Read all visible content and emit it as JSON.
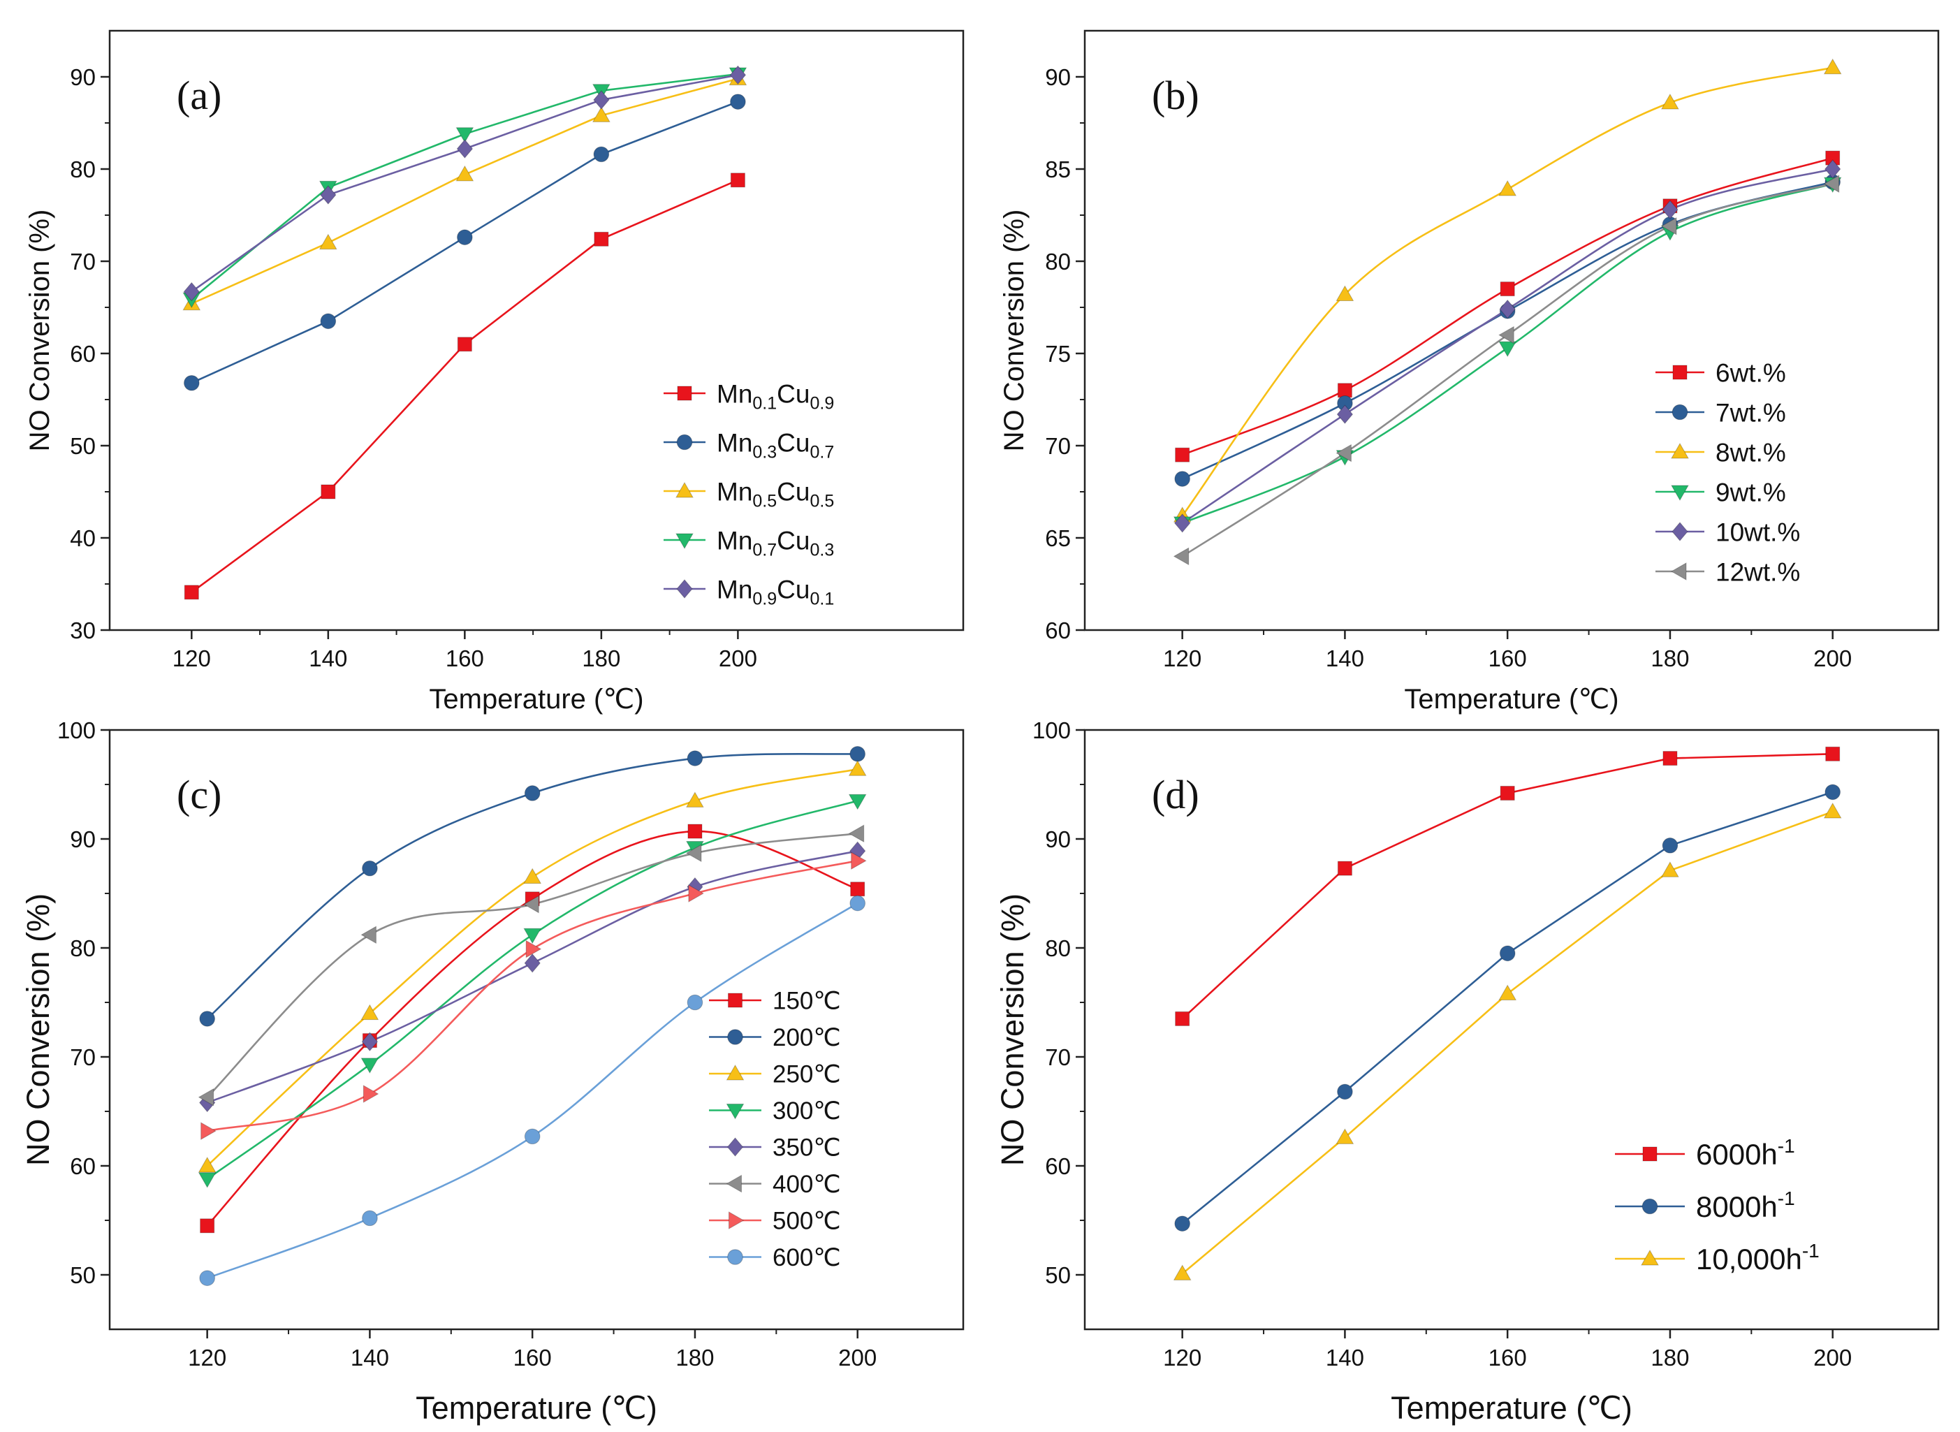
{
  "figure": {
    "colors": {
      "red": "#e8141c",
      "blue": "#2e5e95",
      "yellow": "#f7bf16",
      "green": "#22b86a",
      "purple": "#6b5fa2",
      "gray": "#8c8c8c",
      "salmon": "#f45b5b",
      "lightblue": "#6aa0d8"
    }
  },
  "chart_data": [
    {
      "type": "line",
      "panel": "(a)",
      "xlabel": "Temperature (℃)",
      "ylabel": "NO Conversion (%)",
      "x": [
        120,
        140,
        160,
        180,
        200
      ],
      "xlim": [
        108,
        233
      ],
      "ylim": [
        30,
        95
      ],
      "xticks": [
        120,
        140,
        160,
        180,
        200
      ],
      "yticks": [
        30,
        40,
        50,
        60,
        70,
        80,
        90
      ],
      "smooth": false,
      "legend_position": "lower-right",
      "series": [
        {
          "name": "Mn0.1Cu0.9",
          "base1": "Mn",
          "sub1": "0.1",
          "base2": "Cu",
          "sub2": "0.9",
          "color": "#e8141c",
          "marker": "square",
          "values": [
            34.1,
            45.0,
            61.0,
            72.4,
            78.8
          ]
        },
        {
          "name": "Mn0.3Cu0.7",
          "base1": "Mn",
          "sub1": "0.3",
          "base2": "Cu",
          "sub2": "0.7",
          "color": "#2e5e95",
          "marker": "circle",
          "values": [
            56.8,
            63.5,
            72.6,
            81.6,
            87.3
          ]
        },
        {
          "name": "Mn0.5Cu0.5",
          "base1": "Mn",
          "sub1": "0.5",
          "base2": "Cu",
          "sub2": "0.5",
          "color": "#f7bf16",
          "marker": "triangle-up",
          "values": [
            65.4,
            72.0,
            79.4,
            85.8,
            89.8
          ]
        },
        {
          "name": "Mn0.7Cu0.3",
          "base1": "Mn",
          "sub1": "0.7",
          "base2": "Cu",
          "sub2": "0.3",
          "color": "#22b86a",
          "marker": "triangle-down",
          "values": [
            65.9,
            78.0,
            83.8,
            88.5,
            90.3
          ]
        },
        {
          "name": "Mn0.9Cu0.1",
          "base1": "Mn",
          "sub1": "0.9",
          "base2": "Cu",
          "sub2": "0.1",
          "color": "#6b5fa2",
          "marker": "diamond",
          "values": [
            66.7,
            77.2,
            82.2,
            87.5,
            90.2
          ]
        }
      ]
    },
    {
      "type": "line",
      "panel": "(b)",
      "xlabel": "Temperature (℃)",
      "ylabel": "NO Conversion (%)",
      "x": [
        120,
        140,
        160,
        180,
        200
      ],
      "xlim": [
        108,
        213
      ],
      "ylim": [
        60,
        92.5
      ],
      "xticks": [
        120,
        140,
        160,
        180,
        200
      ],
      "yticks": [
        60,
        65,
        70,
        75,
        80,
        85,
        90
      ],
      "smooth": true,
      "legend_position": "lower-right",
      "series": [
        {
          "name": "6wt.%",
          "color": "#e8141c",
          "marker": "square",
          "values": [
            69.5,
            73.0,
            78.5,
            83.0,
            85.6
          ]
        },
        {
          "name": "7wt.%",
          "color": "#2e5e95",
          "marker": "circle",
          "values": [
            68.2,
            72.3,
            77.3,
            82.0,
            84.3
          ]
        },
        {
          "name": "8wt.%",
          "color": "#f7bf16",
          "marker": "triangle-up",
          "values": [
            66.2,
            78.2,
            83.9,
            88.6,
            90.5
          ]
        },
        {
          "name": "9wt.%",
          "color": "#22b86a",
          "marker": "triangle-down",
          "values": [
            65.8,
            69.4,
            75.3,
            81.6,
            84.2
          ]
        },
        {
          "name": "10wt.%",
          "color": "#6b5fa2",
          "marker": "diamond",
          "values": [
            65.8,
            71.7,
            77.4,
            82.8,
            85.0
          ]
        },
        {
          "name": "12wt.%",
          "color": "#8c8c8c",
          "marker": "triangle-left",
          "values": [
            64.0,
            69.6,
            76.0,
            81.9,
            84.2
          ]
        }
      ]
    },
    {
      "type": "line",
      "panel": "(c)",
      "xlabel": "Temperature (℃)",
      "ylabel": "NO Conversion (%)",
      "x": [
        120,
        140,
        160,
        180,
        200
      ],
      "xlim": [
        108,
        213
      ],
      "ylim": [
        45,
        100
      ],
      "xticks": [
        120,
        140,
        160,
        180,
        200
      ],
      "yticks": [
        50,
        60,
        70,
        80,
        90,
        100
      ],
      "smooth": true,
      "legend_position": "right",
      "series": [
        {
          "name": "150℃",
          "color": "#e8141c",
          "marker": "square",
          "values": [
            54.5,
            71.5,
            84.5,
            90.7,
            85.4
          ]
        },
        {
          "name": "200℃",
          "color": "#2e5e95",
          "marker": "circle",
          "values": [
            73.5,
            87.3,
            94.2,
            97.4,
            97.8
          ]
        },
        {
          "name": "250℃",
          "color": "#f7bf16",
          "marker": "triangle-up",
          "values": [
            60.0,
            74.0,
            86.5,
            93.5,
            96.4
          ]
        },
        {
          "name": "300℃",
          "color": "#22b86a",
          "marker": "triangle-down",
          "values": [
            58.8,
            69.3,
            81.2,
            89.2,
            93.5
          ]
        },
        {
          "name": "350℃",
          "color": "#6b5fa2",
          "marker": "diamond",
          "values": [
            65.8,
            71.4,
            78.6,
            85.6,
            88.9
          ]
        },
        {
          "name": "400℃",
          "color": "#8c8c8c",
          "marker": "triangle-left",
          "values": [
            66.3,
            81.2,
            84.0,
            88.7,
            90.5
          ]
        },
        {
          "name": "500℃",
          "color": "#f45b5b",
          "marker": "triangle-right",
          "values": [
            63.2,
            66.6,
            79.9,
            85.0,
            88.0
          ]
        },
        {
          "name": "600℃",
          "color": "#6aa0d8",
          "marker": "circle",
          "values": [
            49.7,
            55.2,
            62.7,
            75.0,
            84.1
          ]
        }
      ]
    },
    {
      "type": "line",
      "panel": "(d)",
      "xlabel": "Temperature (℃)",
      "ylabel": "NO Conversion (%)",
      "x": [
        120,
        140,
        160,
        180,
        200
      ],
      "xlim": [
        108,
        213
      ],
      "ylim": [
        45,
        100
      ],
      "xticks": [
        120,
        140,
        160,
        180,
        200
      ],
      "yticks": [
        50,
        60,
        70,
        80,
        90,
        100
      ],
      "smooth": false,
      "legend_position": "lower-right",
      "series": [
        {
          "name": "6000h-1",
          "base": "6000h",
          "sup": "-1",
          "color": "#e8141c",
          "marker": "square",
          "values": [
            73.5,
            87.3,
            94.2,
            97.4,
            97.8
          ]
        },
        {
          "name": "8000h-1",
          "base": "8000h",
          "sup": "-1",
          "color": "#2e5e95",
          "marker": "circle",
          "values": [
            54.7,
            66.8,
            79.5,
            89.4,
            94.3
          ]
        },
        {
          "name": "10,000h-1",
          "base": "10,000h",
          "sup": "-1",
          "color": "#f7bf16",
          "marker": "triangle-up",
          "values": [
            50.1,
            62.6,
            75.8,
            87.1,
            92.5
          ]
        }
      ]
    }
  ]
}
